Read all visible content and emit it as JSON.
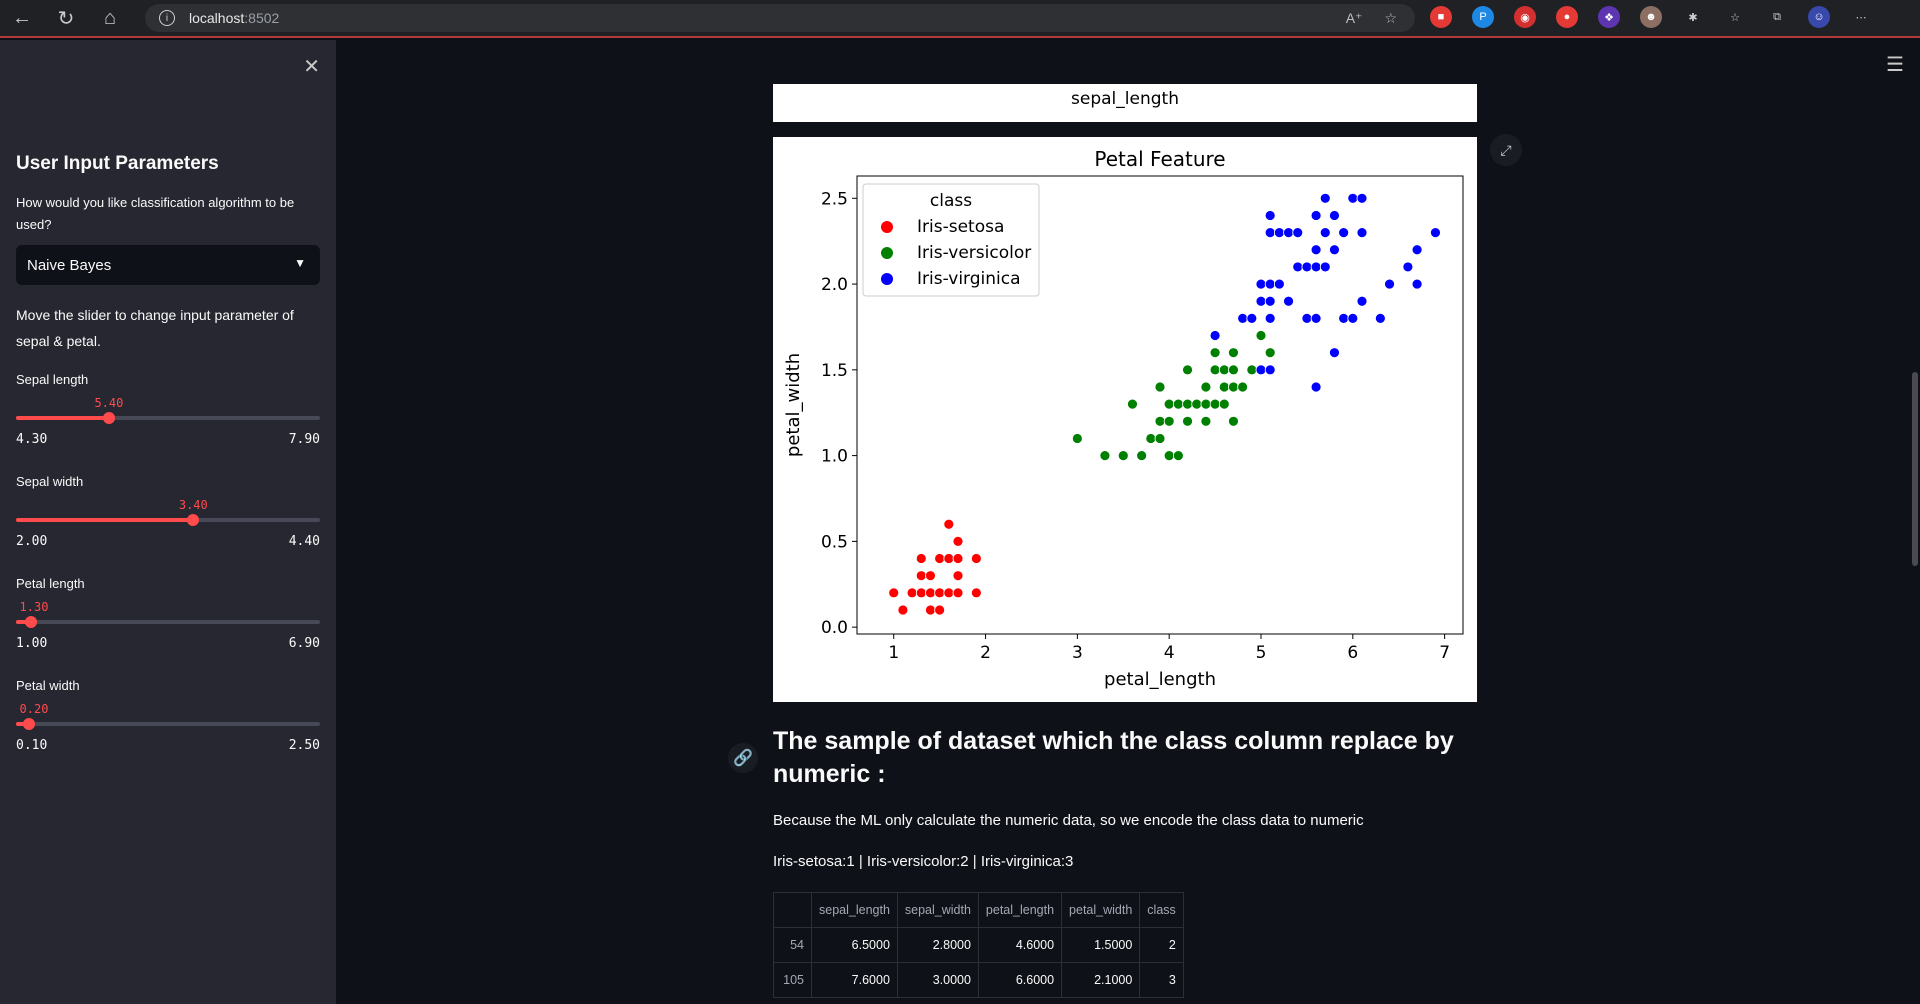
{
  "browser": {
    "host": "localhost",
    "port": ":8502"
  },
  "sidebar": {
    "header": "User Input Parameters",
    "question": "How would you like classification algorithm to be used?",
    "select_value": "Naive Bayes",
    "slider_hint": "Move the slider to change input parameter of sepal & petal.",
    "sliders": [
      {
        "label": "Sepal length",
        "value": "5.40",
        "min": "4.30",
        "max": "7.90",
        "frac": 0.3056
      },
      {
        "label": "Sepal width",
        "value": "3.40",
        "min": "2.00",
        "max": "4.40",
        "frac": 0.5833
      },
      {
        "label": "Petal length",
        "value": "1.30",
        "min": "1.00",
        "max": "6.90",
        "frac": 0.0508
      },
      {
        "label": "Petal width",
        "value": "0.20",
        "min": "0.10",
        "max": "2.50",
        "frac": 0.0417
      }
    ]
  },
  "main": {
    "prev_chart_xlabel": "sepal_length",
    "heading": "The sample of dataset which the class column replace by numeric :",
    "para1": "Because the ML only calculate the numeric data, so we encode the class data to numeric",
    "para2": "Iris-setosa:1 | Iris-versicolor:2 | Iris-virginica:3",
    "table": {
      "columns": [
        "",
        "sepal_length",
        "sepal_width",
        "petal_length",
        "petal_width",
        "class"
      ],
      "rows": [
        [
          "54",
          "6.5000",
          "2.8000",
          "4.6000",
          "1.5000",
          "2"
        ],
        [
          "105",
          "7.6000",
          "3.0000",
          "6.6000",
          "2.1000",
          "3"
        ]
      ]
    }
  },
  "chart_data": {
    "type": "scatter",
    "title": "Petal Feature",
    "xlabel": "petal_length",
    "ylabel": "petal_width",
    "xlim": [
      0.6,
      7.2
    ],
    "ylim": [
      -0.04,
      2.63
    ],
    "xticks": [
      "1",
      "2",
      "3",
      "4",
      "5",
      "6",
      "7"
    ],
    "yticks": [
      "0.0",
      "0.5",
      "1.0",
      "1.5",
      "2.0",
      "2.5"
    ],
    "legend_title": "class",
    "legend_placement": "upper-left",
    "series": [
      {
        "name": "Iris-setosa",
        "color": "#ff0000",
        "points": [
          [
            1.0,
            0.2
          ],
          [
            1.1,
            0.1
          ],
          [
            1.2,
            0.2
          ],
          [
            1.3,
            0.2
          ],
          [
            1.3,
            0.3
          ],
          [
            1.3,
            0.4
          ],
          [
            1.4,
            0.1
          ],
          [
            1.4,
            0.2
          ],
          [
            1.4,
            0.3
          ],
          [
            1.5,
            0.1
          ],
          [
            1.5,
            0.2
          ],
          [
            1.5,
            0.4
          ],
          [
            1.6,
            0.2
          ],
          [
            1.6,
            0.4
          ],
          [
            1.6,
            0.6
          ],
          [
            1.7,
            0.2
          ],
          [
            1.7,
            0.3
          ],
          [
            1.7,
            0.4
          ],
          [
            1.7,
            0.5
          ],
          [
            1.9,
            0.2
          ],
          [
            1.9,
            0.4
          ]
        ]
      },
      {
        "name": "Iris-versicolor",
        "color": "#008000",
        "points": [
          [
            3.0,
            1.1
          ],
          [
            3.3,
            1.0
          ],
          [
            3.5,
            1.0
          ],
          [
            3.6,
            1.3
          ],
          [
            3.7,
            1.0
          ],
          [
            3.8,
            1.1
          ],
          [
            3.9,
            1.1
          ],
          [
            3.9,
            1.2
          ],
          [
            3.9,
            1.4
          ],
          [
            4.0,
            1.0
          ],
          [
            4.0,
            1.2
          ],
          [
            4.0,
            1.3
          ],
          [
            4.1,
            1.0
          ],
          [
            4.1,
            1.3
          ],
          [
            4.2,
            1.2
          ],
          [
            4.2,
            1.3
          ],
          [
            4.2,
            1.5
          ],
          [
            4.3,
            1.3
          ],
          [
            4.4,
            1.2
          ],
          [
            4.4,
            1.3
          ],
          [
            4.4,
            1.4
          ],
          [
            4.5,
            1.3
          ],
          [
            4.5,
            1.5
          ],
          [
            4.5,
            1.6
          ],
          [
            4.6,
            1.3
          ],
          [
            4.6,
            1.4
          ],
          [
            4.6,
            1.5
          ],
          [
            4.7,
            1.2
          ],
          [
            4.7,
            1.4
          ],
          [
            4.7,
            1.5
          ],
          [
            4.7,
            1.6
          ],
          [
            4.8,
            1.4
          ],
          [
            4.8,
            1.8
          ],
          [
            4.9,
            1.5
          ],
          [
            5.0,
            1.7
          ],
          [
            5.1,
            1.6
          ]
        ]
      },
      {
        "name": "Iris-virginica",
        "color": "#0000ff",
        "points": [
          [
            4.5,
            1.7
          ],
          [
            4.8,
            1.8
          ],
          [
            4.9,
            1.8
          ],
          [
            5.0,
            1.5
          ],
          [
            5.0,
            1.9
          ],
          [
            5.0,
            2.0
          ],
          [
            5.1,
            1.5
          ],
          [
            5.1,
            1.8
          ],
          [
            5.1,
            1.9
          ],
          [
            5.1,
            2.0
          ],
          [
            5.1,
            2.3
          ],
          [
            5.1,
            2.4
          ],
          [
            5.2,
            2.0
          ],
          [
            5.2,
            2.3
          ],
          [
            5.3,
            1.9
          ],
          [
            5.3,
            2.3
          ],
          [
            5.4,
            2.1
          ],
          [
            5.4,
            2.3
          ],
          [
            5.5,
            1.8
          ],
          [
            5.5,
            2.1
          ],
          [
            5.6,
            1.4
          ],
          [
            5.6,
            1.8
          ],
          [
            5.6,
            2.1
          ],
          [
            5.6,
            2.2
          ],
          [
            5.6,
            2.4
          ],
          [
            5.7,
            2.1
          ],
          [
            5.7,
            2.3
          ],
          [
            5.7,
            2.5
          ],
          [
            5.8,
            1.6
          ],
          [
            5.8,
            2.2
          ],
          [
            5.8,
            2.4
          ],
          [
            5.9,
            1.8
          ],
          [
            5.9,
            2.3
          ],
          [
            6.0,
            1.8
          ],
          [
            6.0,
            2.5
          ],
          [
            6.1,
            1.9
          ],
          [
            6.1,
            2.3
          ],
          [
            6.1,
            2.5
          ],
          [
            6.3,
            1.8
          ],
          [
            6.4,
            2.0
          ],
          [
            6.6,
            2.1
          ],
          [
            6.7,
            2.0
          ],
          [
            6.7,
            2.2
          ],
          [
            6.9,
            2.3
          ]
        ]
      }
    ]
  }
}
